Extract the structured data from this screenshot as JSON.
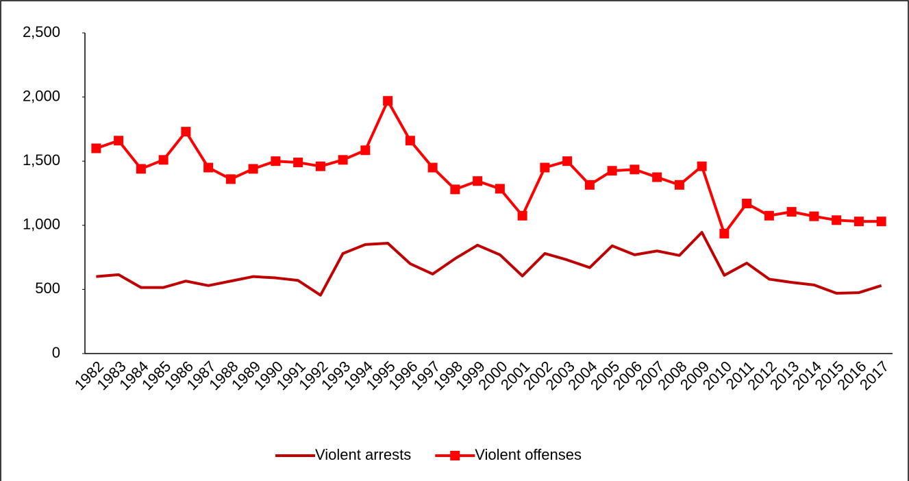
{
  "chart_data": {
    "type": "line",
    "categories": [
      "1982",
      "1983",
      "1984",
      "1985",
      "1986",
      "1987",
      "1988",
      "1989",
      "1990",
      "1991",
      "1992",
      "1993",
      "1994",
      "1995",
      "1996",
      "1997",
      "1998",
      "1999",
      "2000",
      "2001",
      "2002",
      "2003",
      "2004",
      "2005",
      "2006",
      "2007",
      "2008",
      "2009",
      "2010",
      "2011",
      "2012",
      "2013",
      "2014",
      "2015",
      "2016",
      "2017"
    ],
    "series": [
      {
        "name": "Violent arrests",
        "color": "#c00000",
        "marker": false,
        "values": [
          600,
          615,
          515,
          515,
          565,
          530,
          565,
          600,
          590,
          570,
          455,
          780,
          850,
          860,
          700,
          620,
          740,
          845,
          770,
          605,
          780,
          730,
          670,
          840,
          770,
          800,
          765,
          945,
          610,
          705,
          580,
          555,
          535,
          470,
          475,
          530
        ]
      },
      {
        "name": "Violent offenses",
        "color": "#ff0000",
        "marker": true,
        "values": [
          1600,
          1660,
          1440,
          1510,
          1730,
          1450,
          1360,
          1440,
          1500,
          1490,
          1460,
          1510,
          1585,
          1970,
          1660,
          1450,
          1280,
          1345,
          1285,
          1075,
          1450,
          1500,
          1315,
          1425,
          1435,
          1375,
          1315,
          1460,
          935,
          1170,
          1075,
          1105,
          1070,
          1040,
          1030,
          1030
        ]
      }
    ],
    "ylim": [
      0,
      2500
    ],
    "yticks": [
      0,
      500,
      {
        "value": 1000,
        "label": "1,000"
      },
      {
        "value": 1500,
        "label": "1,500"
      },
      {
        "value": 2000,
        "label": "2,000"
      },
      {
        "value": 2500,
        "label": "2,500"
      }
    ],
    "grid": false,
    "legend": "bottom"
  }
}
